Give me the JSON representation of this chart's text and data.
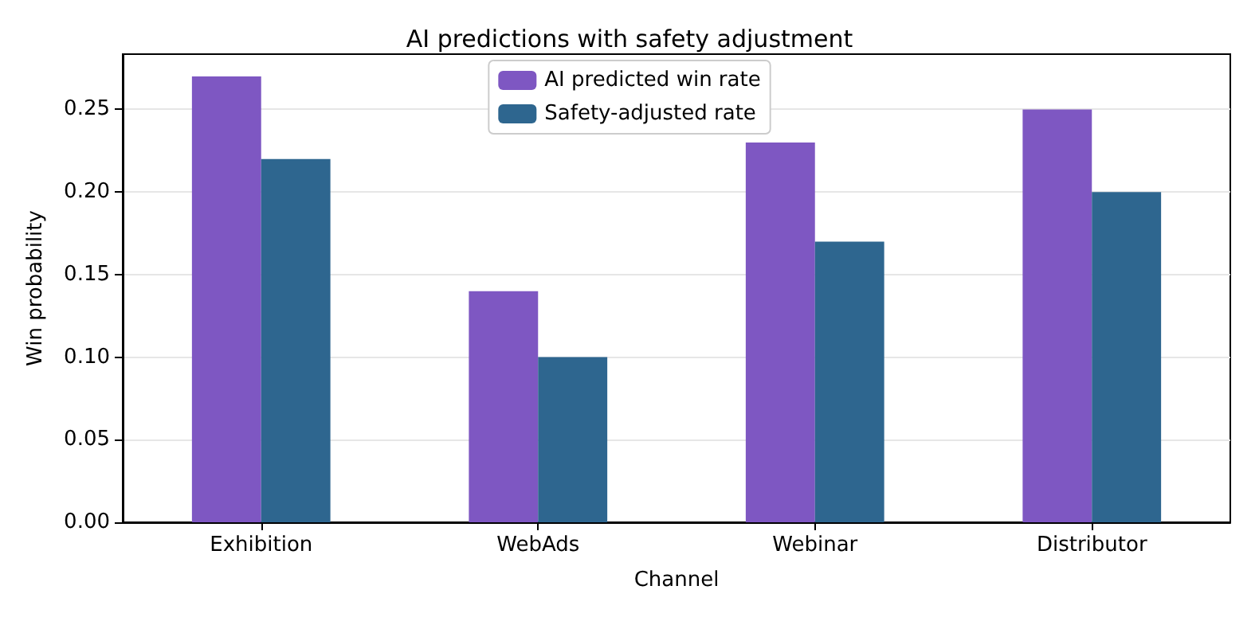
{
  "chart_data": {
    "type": "bar",
    "title": "AI predictions with safety adjustment",
    "xlabel": "Channel",
    "ylabel": "Win probability",
    "categories": [
      "Exhibition",
      "WebAds",
      "Webinar",
      "Distributor"
    ],
    "series": [
      {
        "name": "AI predicted win rate",
        "color": "#7e57c2",
        "values": [
          0.27,
          0.14,
          0.23,
          0.25
        ]
      },
      {
        "name": "Safety-adjusted rate",
        "color": "#2e668f",
        "values": [
          0.22,
          0.1,
          0.17,
          0.2
        ]
      }
    ],
    "ylim": [
      0,
      0.2835
    ],
    "yticks": [
      {
        "value": 0,
        "label": "0.00"
      },
      {
        "value": 0.05,
        "label": "0.05"
      },
      {
        "value": 0.1,
        "label": "0.10"
      },
      {
        "value": 0.15,
        "label": "0.15"
      },
      {
        "value": 0.2,
        "label": "0.20"
      },
      {
        "value": 0.25,
        "label": "0.25"
      }
    ],
    "grid": "y",
    "legend": "top"
  }
}
